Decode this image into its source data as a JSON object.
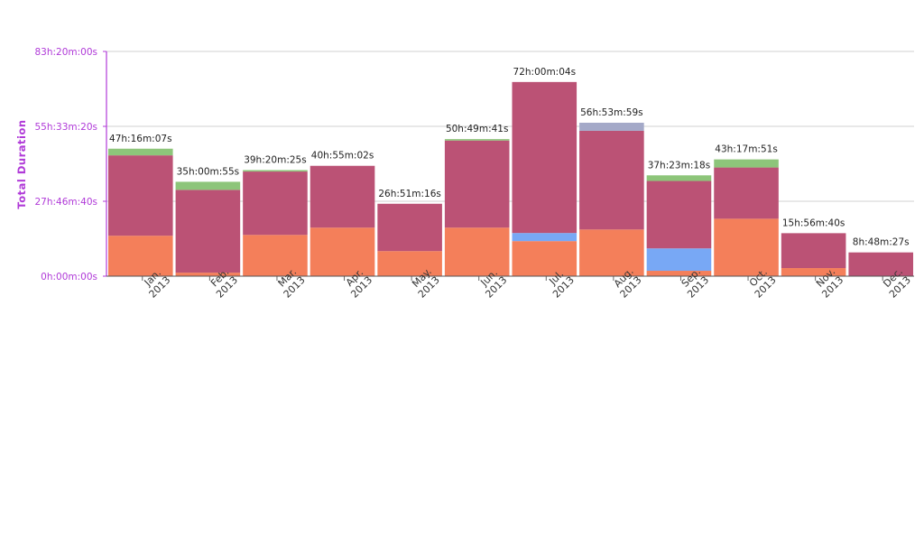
{
  "chart_data": {
    "type": "bar",
    "stacked": true,
    "ylabel": "Total Duration",
    "y_ticks": [
      "0h:00m:00s",
      "27h:46m:40s",
      "55h:33m:20s",
      "83h:20m:00s"
    ],
    "ylim_hours": [
      0,
      83.333
    ],
    "grid": true,
    "colors": {
      "axis": "#b03ad8",
      "orange": "#f47f5a",
      "crimson": "#bb5275",
      "green": "#8dc57a",
      "blue": "#78a8f5",
      "grayblue": "#a4a9c8",
      "grid": "#d0d0d0"
    },
    "months": [
      {
        "label": "Jan. 2013",
        "total": "47h:16m:07s",
        "total_hours": 47.27,
        "segments": [
          {
            "color": "orange",
            "hours": 15.0
          },
          {
            "color": "crimson",
            "hours": 29.8
          },
          {
            "color": "green",
            "hours": 2.47
          }
        ]
      },
      {
        "label": "Feb. 2013",
        "total": "35h:00m:55s",
        "total_hours": 35.02,
        "segments": [
          {
            "color": "orange",
            "hours": 1.3
          },
          {
            "color": "crimson",
            "hours": 30.7
          },
          {
            "color": "green",
            "hours": 3.0
          }
        ]
      },
      {
        "label": "Mar. 2013",
        "total": "39h:20m:25s",
        "total_hours": 39.34,
        "segments": [
          {
            "color": "orange",
            "hours": 15.3
          },
          {
            "color": "crimson",
            "hours": 23.5
          },
          {
            "color": "green",
            "hours": 0.54
          }
        ]
      },
      {
        "label": "Apr. 2013",
        "total": "40h:55m:02s",
        "total_hours": 40.92,
        "segments": [
          {
            "color": "orange",
            "hours": 18.0
          },
          {
            "color": "crimson",
            "hours": 22.92
          }
        ]
      },
      {
        "label": "May. 2013",
        "total": "26h:51m:16s",
        "total_hours": 26.85,
        "segments": [
          {
            "color": "orange",
            "hours": 9.3
          },
          {
            "color": "crimson",
            "hours": 17.55
          }
        ]
      },
      {
        "label": "Jun. 2013",
        "total": "50h:49m:41s",
        "total_hours": 50.83,
        "segments": [
          {
            "color": "orange",
            "hours": 18.0
          },
          {
            "color": "crimson",
            "hours": 32.3
          },
          {
            "color": "green",
            "hours": 0.53
          }
        ]
      },
      {
        "label": "Jul. 2013",
        "total": "72h:00m:04s",
        "total_hours": 72.0,
        "segments": [
          {
            "color": "orange",
            "hours": 13.0
          },
          {
            "color": "blue",
            "hours": 3.0
          },
          {
            "color": "crimson",
            "hours": 56.0
          }
        ]
      },
      {
        "label": "Aug. 2013",
        "total": "56h:53m:59s",
        "total_hours": 56.9,
        "segments": [
          {
            "color": "orange",
            "hours": 17.3
          },
          {
            "color": "crimson",
            "hours": 36.6
          },
          {
            "color": "grayblue",
            "hours": 3.0
          }
        ]
      },
      {
        "label": "Sep. 2013",
        "total": "37h:23m:18s",
        "total_hours": 37.39,
        "segments": [
          {
            "color": "orange",
            "hours": 2.0
          },
          {
            "color": "blue",
            "hours": 8.3
          },
          {
            "color": "crimson",
            "hours": 25.0
          },
          {
            "color": "green",
            "hours": 2.09
          }
        ]
      },
      {
        "label": "Oct. 2013",
        "total": "43h:17m:51s",
        "total_hours": 43.3,
        "segments": [
          {
            "color": "orange",
            "hours": 21.3
          },
          {
            "color": "crimson",
            "hours": 19.0
          },
          {
            "color": "green",
            "hours": 3.0
          }
        ]
      },
      {
        "label": "Nov. 2013",
        "total": "15h:56m:40s",
        "total_hours": 15.94,
        "segments": [
          {
            "color": "orange",
            "hours": 3.0
          },
          {
            "color": "crimson",
            "hours": 12.94
          }
        ]
      },
      {
        "label": "Dec. 2013",
        "total": "8h:48m:27s",
        "total_hours": 8.81,
        "segments": [
          {
            "color": "crimson",
            "hours": 8.81
          }
        ]
      }
    ]
  }
}
